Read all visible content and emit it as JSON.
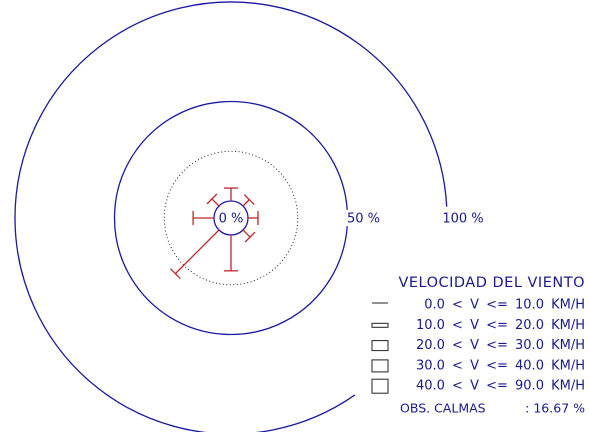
{
  "chart_data": {
    "type": "wind_rose",
    "directions_deg": [
      0,
      45,
      90,
      135,
      180,
      225,
      270,
      315
    ],
    "values": [
      6.5,
      4.5,
      5,
      5,
      18,
      31,
      10.5,
      5
    ],
    "color": "#c0262c",
    "ring_color": "#1a1aa0",
    "rlim": [
      0,
      100
    ],
    "rticks": [
      {
        "value": 0,
        "label": "0 %"
      },
      {
        "value": 50,
        "label": "50 %"
      },
      {
        "value": 100,
        "label": "100 %"
      }
    ],
    "minor_rticks": [
      25
    ],
    "legend_title": "VELOCIDAD DEL VIENTO",
    "speed_classes": [
      "0.0 < V <= 10.0 KM/H",
      "10.0 < V <= 20.0 KM/H",
      "20.0 < V <= 30.0 KM/H",
      "30.0 < V <= 40.0 KM/H",
      "40.0 < V <= 90.0 KM/H"
    ],
    "calm_label": "OBS. CALMAS",
    "calm_value": 16.67,
    "calm_value_label": ": 16.67 %"
  }
}
